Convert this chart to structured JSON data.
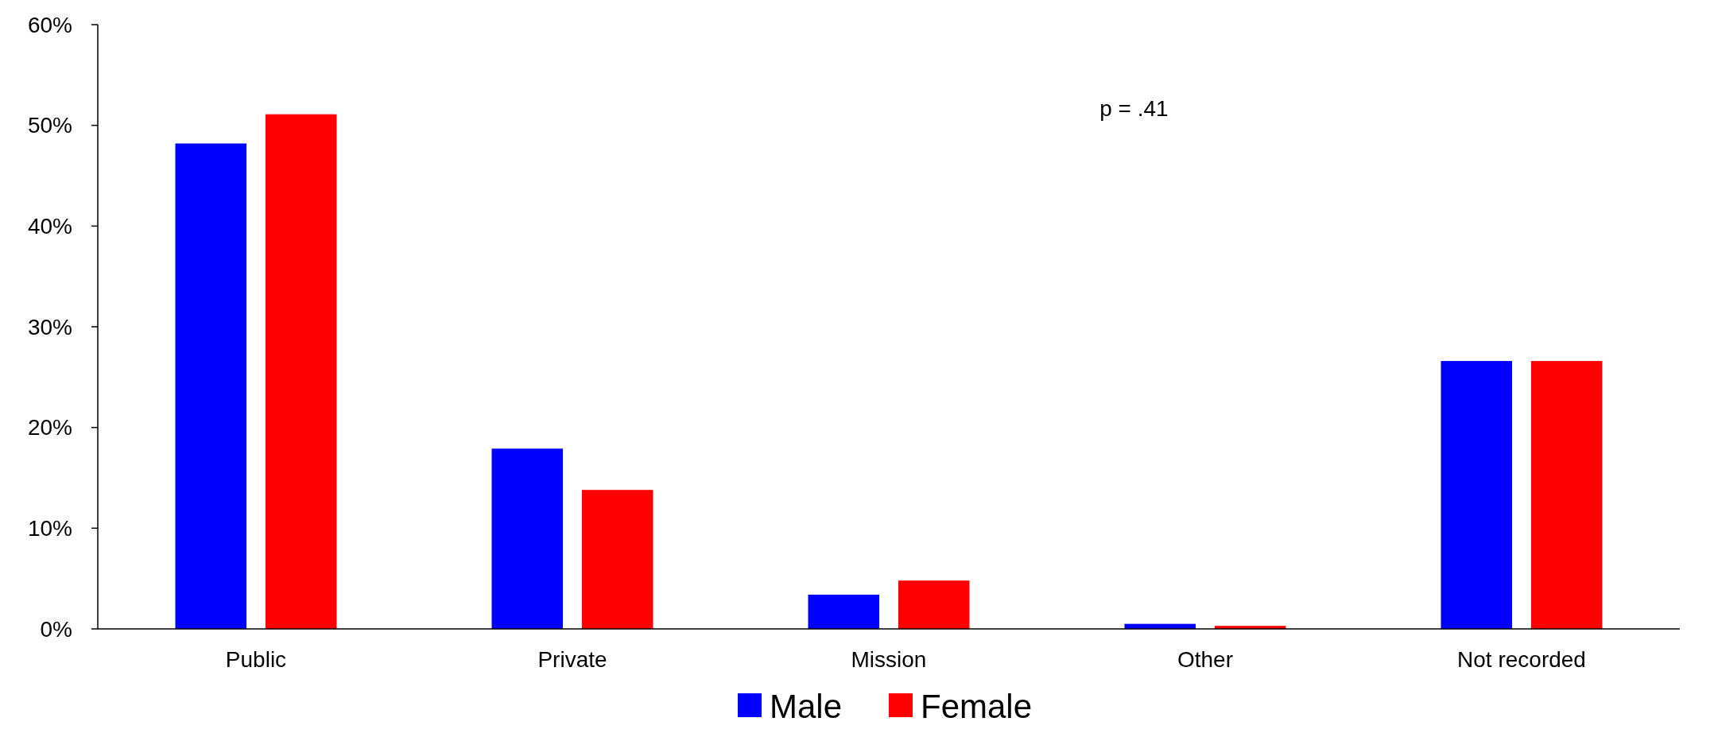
{
  "chart_data": {
    "type": "bar",
    "categories": [
      "Public",
      "Private",
      "Mission",
      "Other",
      "Not recorded"
    ],
    "series": [
      {
        "name": "Male",
        "color": "#0000ff",
        "values": [
          48.2,
          17.9,
          3.4,
          0.5,
          26.6
        ]
      },
      {
        "name": "Female",
        "color": "#ff0000",
        "values": [
          51.1,
          13.8,
          4.8,
          0.3,
          26.6
        ]
      }
    ],
    "ylim": [
      0,
      60
    ],
    "yticks": [
      {
        "value": 0,
        "label": "0%"
      },
      {
        "value": 10,
        "label": "10%"
      },
      {
        "value": 20,
        "label": "20%"
      },
      {
        "value": 30,
        "label": "30%"
      },
      {
        "value": 40,
        "label": "40%"
      },
      {
        "value": 50,
        "label": "50%"
      },
      {
        "value": 60,
        "label": "60%"
      }
    ],
    "annotations": [
      "p = .41"
    ],
    "legend": "bottom",
    "grid": false
  }
}
